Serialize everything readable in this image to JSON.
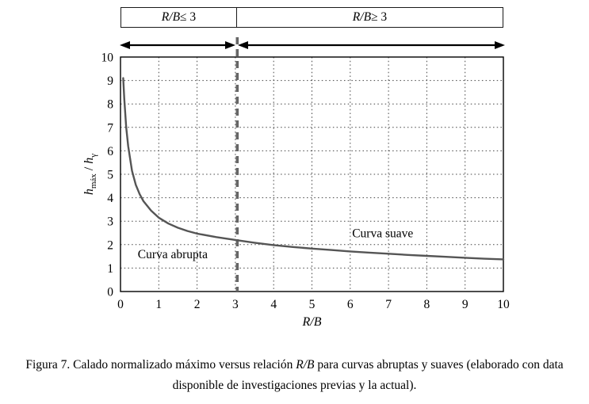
{
  "header": {
    "left": {
      "var": "R/B",
      "rel": " ≤ 3"
    },
    "right": {
      "var": "R/B",
      "rel": " ≥ 3"
    }
  },
  "axis": {
    "ylabel": {
      "v1": "h",
      "s1": "máx",
      "sep": " / ",
      "v2": "h",
      "s2": "γ"
    }
  },
  "caption": {
    "line1_pre": "Figura 7. Calado normalizado máximo versus relación ",
    "line1_var": "R/B",
    "line1_post": " para curvas abruptas y suaves (elaborado con data",
    "line2": "disponible de investigaciones previas y la actual)."
  },
  "chart_data": {
    "type": "line",
    "title": "",
    "xlabel": "R/B",
    "ylabel": "h_máx / h_γ",
    "xlim": [
      0,
      10
    ],
    "ylim": [
      0,
      10
    ],
    "xticks": [
      0,
      1,
      2,
      3,
      4,
      5,
      6,
      7,
      8,
      9,
      10
    ],
    "yticks": [
      0,
      1,
      2,
      3,
      4,
      5,
      6,
      7,
      8,
      9,
      10
    ],
    "grid": "dotted",
    "grid_color": "#444444",
    "frame_color": "#000000",
    "vline": {
      "x": 3.05,
      "style": "dashed",
      "color": "#666666"
    },
    "series": [
      {
        "name": "calado-normalizado-maximo",
        "color": "#555555",
        "x": [
          0.07,
          0.1,
          0.15,
          0.2,
          0.3,
          0.4,
          0.5,
          0.6,
          0.8,
          1.0,
          1.25,
          1.5,
          1.75,
          2.0,
          2.5,
          3.0,
          3.5,
          4.0,
          4.5,
          5.0,
          5.5,
          6.0,
          6.5,
          7.0,
          7.5,
          8.0,
          8.5,
          9.0,
          9.5,
          10.0
        ],
        "y": [
          9.1,
          8.2,
          7.0,
          6.2,
          5.15,
          4.55,
          4.15,
          3.85,
          3.45,
          3.15,
          2.9,
          2.72,
          2.58,
          2.47,
          2.32,
          2.2,
          2.08,
          1.98,
          1.9,
          1.83,
          1.77,
          1.71,
          1.66,
          1.61,
          1.56,
          1.52,
          1.48,
          1.44,
          1.4,
          1.37
        ]
      }
    ],
    "annotations": [
      {
        "text": "Curva abrupta",
        "x": 0.45,
        "y": 1.42,
        "anchor": "start"
      },
      {
        "text": "Curva suave",
        "x": 6.05,
        "y": 2.32,
        "anchor": "start"
      }
    ],
    "regions": [
      {
        "label": "R/B ≤ 3",
        "from": 0,
        "to": 3
      },
      {
        "label": "R/B ≥ 3",
        "from": 3,
        "to": 10
      }
    ]
  }
}
